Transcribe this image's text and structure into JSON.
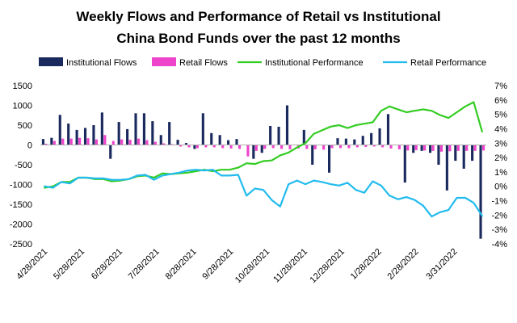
{
  "chart_data": {
    "type": "bar+line",
    "title_lines": [
      "Weekly Flows and Performance of Retail vs Institutional",
      "China Bond Funds over the past 12 months"
    ],
    "legend": [
      {
        "name": "Institutional Flows",
        "kind": "bar",
        "color": "#1b2a5e"
      },
      {
        "name": "Retail Flows",
        "kind": "bar",
        "color": "#ee44cc"
      },
      {
        "name": "Institutional Performance",
        "kind": "line",
        "color": "#33cc22"
      },
      {
        "name": "Retail Performance",
        "kind": "line",
        "color": "#22bbee"
      }
    ],
    "legend_position": "top",
    "grid": false,
    "y_left": {
      "min": -2500,
      "max": 1500,
      "ticks": [
        1500,
        1000,
        500,
        0,
        -500,
        -1000,
        -1500,
        -2000,
        -2500
      ]
    },
    "y_right": {
      "min": -0.04,
      "max": 0.07,
      "ticks": [
        "7%",
        "6%",
        "5%",
        "4%",
        "3%",
        "2%",
        "1%",
        "0%",
        "-1%",
        "-2%",
        "-3%",
        "-4%"
      ]
    },
    "x_tick_labels": [
      "4/28/2021",
      "5/28/2021",
      "6/28/2021",
      "7/28/2021",
      "8/28/2021",
      "9/28/2021",
      "10/28/2021",
      "11/28/2021",
      "12/28/2021",
      "1/28/2022",
      "2/28/2022",
      "3/31/2022"
    ],
    "x_tick_index": [
      0,
      4.4,
      8.9,
      13.3,
      17.7,
      22.1,
      26.4,
      30.9,
      35.3,
      39.7,
      44.1,
      48.7
    ],
    "n_weeks": 53,
    "series": [
      {
        "name": "Institutional Flows",
        "values": [
          150,
          180,
          760,
          540,
          380,
          430,
          500,
          820,
          -350,
          580,
          400,
          800,
          800,
          600,
          250,
          580,
          130,
          50,
          -100,
          800,
          300,
          250,
          120,
          150,
          0,
          -350,
          -200,
          480,
          460,
          1000,
          0,
          380,
          -500,
          0,
          -700,
          170,
          160,
          140,
          230,
          300,
          420,
          780,
          0,
          -950,
          -200,
          -150,
          -200,
          -500,
          -1150,
          -400,
          -600,
          -400,
          -2370
        ]
      },
      {
        "name": "Retail Flows",
        "values": [
          30,
          100,
          160,
          160,
          180,
          170,
          140,
          250,
          100,
          140,
          130,
          160,
          120,
          80,
          40,
          20,
          -40,
          -60,
          -80,
          -60,
          -60,
          -80,
          -90,
          -100,
          -290,
          -150,
          -100,
          -80,
          -100,
          -110,
          -90,
          -100,
          -110,
          -120,
          -80,
          -80,
          -80,
          -60,
          -50,
          -40,
          -60,
          -90,
          -110,
          -140,
          -130,
          -140,
          -150,
          -170,
          -160,
          -150,
          -150,
          -150,
          -140
        ]
      },
      {
        "name": "Institutional Performance",
        "values": [
          -0.001,
          0.0,
          0.003,
          0.003,
          0.006,
          0.006,
          0.005,
          0.005,
          0.0035,
          0.004,
          0.005,
          0.007,
          0.0075,
          0.006,
          0.009,
          0.0085,
          0.009,
          0.0095,
          0.0105,
          0.0115,
          0.0105,
          0.0115,
          0.0115,
          0.013,
          0.016,
          0.0155,
          0.0175,
          0.018,
          0.0215,
          0.0235,
          0.027,
          0.03,
          0.0365,
          0.039,
          0.0415,
          0.0425,
          0.0405,
          0.0425,
          0.0435,
          0.0445,
          0.0525,
          0.0555,
          0.0535,
          0.0515,
          0.0525,
          0.0535,
          0.0525,
          0.0495,
          0.0475,
          0.0515,
          0.0555,
          0.0585,
          0.038
        ]
      },
      {
        "name": "Retail Performance",
        "values": [
          0.0,
          -0.001,
          0.003,
          0.002,
          0.006,
          0.006,
          0.0055,
          0.0055,
          0.0045,
          0.0045,
          0.005,
          0.0075,
          0.008,
          0.0045,
          0.0075,
          0.0085,
          0.0095,
          0.011,
          0.0115,
          0.011,
          0.0115,
          0.0075,
          0.0075,
          0.008,
          -0.0065,
          -0.0015,
          -0.0025,
          -0.0095,
          -0.014,
          0.0015,
          0.004,
          0.0015,
          0.004,
          0.003,
          0.0015,
          0.0005,
          0.0025,
          -0.0025,
          -0.0045,
          0.0035,
          0.0005,
          -0.0065,
          -0.009,
          -0.0075,
          -0.0095,
          -0.0135,
          -0.021,
          -0.018,
          -0.0165,
          -0.008,
          -0.008,
          -0.0115,
          -0.0205
        ]
      }
    ]
  }
}
